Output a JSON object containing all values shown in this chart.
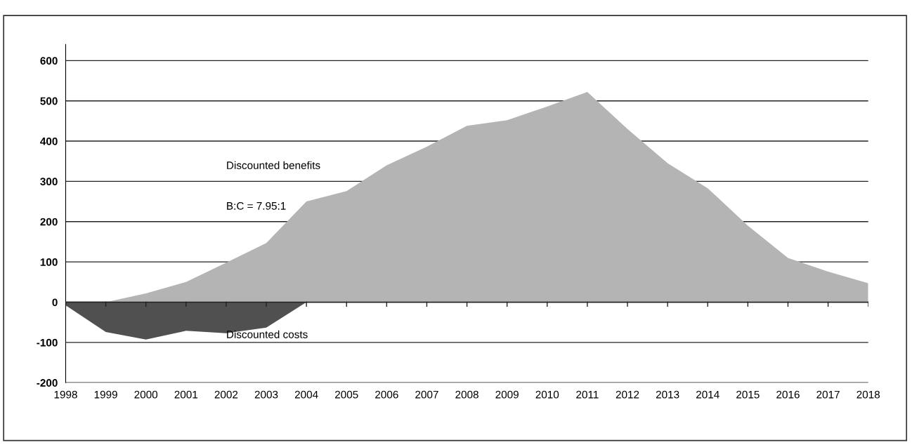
{
  "chart_data": {
    "type": "area",
    "x": [
      1998,
      1999,
      2000,
      2001,
      2002,
      2003,
      2004,
      2005,
      2006,
      2007,
      2008,
      2009,
      2010,
      2011,
      2012,
      2013,
      2014,
      2015,
      2016,
      2017,
      2018
    ],
    "series": [
      {
        "name": "Discounted benefits",
        "color": "#b4b4b4",
        "values": [
          0,
          0,
          22,
          50,
          98,
          147,
          250,
          276,
          340,
          386,
          438,
          452,
          486,
          522,
          430,
          345,
          283,
          190,
          110,
          76,
          47
        ]
      },
      {
        "name": "Discounted costs",
        "color": "#505050",
        "values": [
          -8,
          -74,
          -93,
          -71,
          -77,
          -63,
          0,
          null,
          null,
          null,
          null,
          null,
          null,
          null,
          null,
          null,
          null,
          null,
          null,
          null,
          null
        ]
      }
    ],
    "annotations": [
      "B:C = 7.95:1"
    ],
    "xlim": [
      1998,
      2018
    ],
    "xticks": [
      1998,
      1999,
      2000,
      2001,
      2002,
      2003,
      2004,
      2005,
      2006,
      2007,
      2008,
      2009,
      2010,
      2011,
      2012,
      2013,
      2014,
      2015,
      2016,
      2017,
      2018
    ],
    "ylim": [
      -200,
      640
    ],
    "yticks": [
      -200,
      -100,
      0,
      100,
      200,
      300,
      400,
      500,
      600
    ],
    "grid": "y",
    "legend": false
  }
}
